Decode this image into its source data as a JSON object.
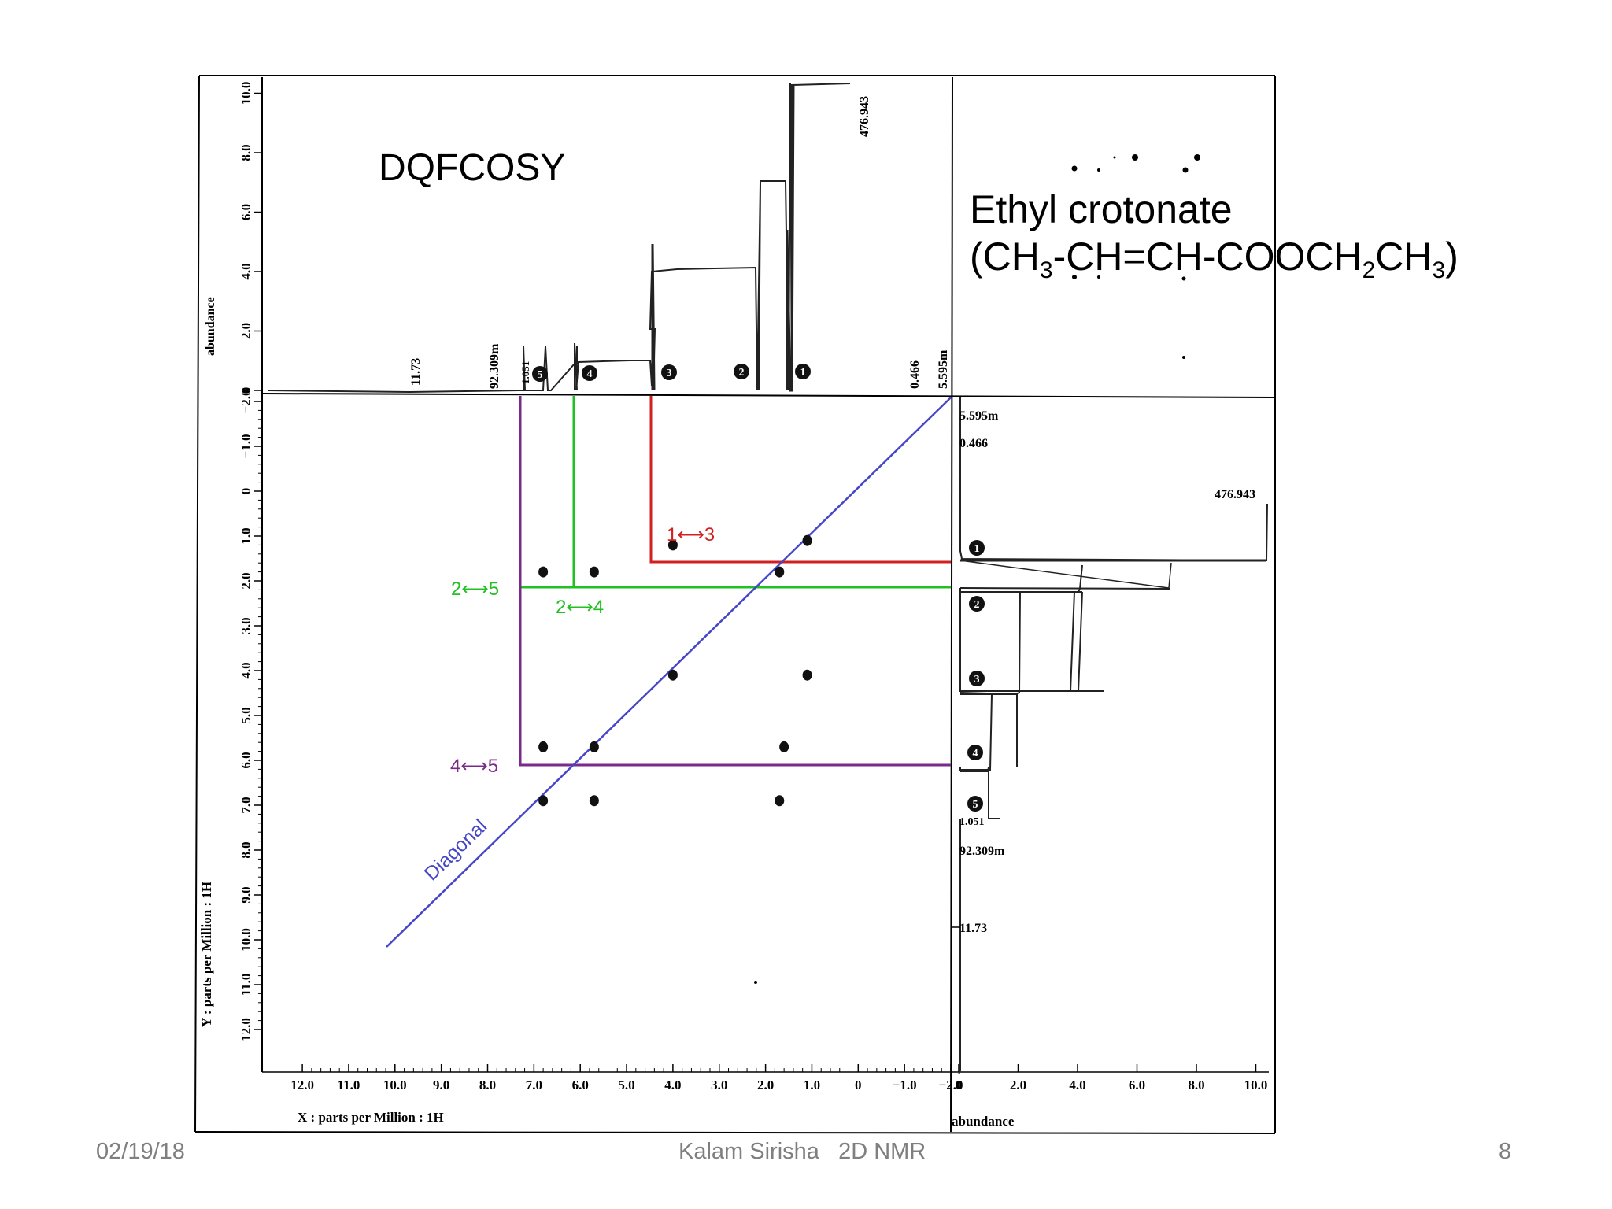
{
  "slide": {
    "title": "DQFCOSY",
    "compound_name": "Ethyl crotonate",
    "formula_parts": [
      "(CH",
      "3",
      "-CH=CH-COOCH",
      "2",
      "CH",
      "3",
      ")"
    ],
    "footer_date": "02/19/18",
    "footer_center": "Kalam Sirisha   2D NMR",
    "page_number": "8"
  },
  "chart_data": {
    "type": "scatter",
    "title": "DQFCOSY",
    "xlabel": "X : parts per Million : 1H",
    "ylabel": "Y : parts per Million : 1H",
    "xlim": [
      12.5,
      -2.5
    ],
    "ylim": [
      -2.5,
      12.5
    ],
    "x_ticks": [
      "12.0",
      "11.0",
      "10.0",
      "9.0",
      "8.0",
      "7.0",
      "6.0",
      "5.0",
      "4.0",
      "3.0",
      "2.0",
      "1.0",
      "0",
      "−1.0",
      "−2.0"
    ],
    "y_ticks": [
      "−2.0",
      "−1.0",
      "0",
      "1.0",
      "2.0",
      "3.0",
      "4.0",
      "5.0",
      "6.0",
      "7.0",
      "8.0",
      "9.0",
      "10.0",
      "11.0",
      "12.0"
    ],
    "top_projection": {
      "ylabel": "abundance",
      "y_ticks": [
        "0",
        "2.0",
        "4.0",
        "6.0",
        "8.0",
        "10.0"
      ],
      "integral_labels": [
        "11.73",
        "92.309m",
        "1.051",
        "0.466",
        "5.595m",
        "476.943"
      ],
      "peak_numbers": [
        "1",
        "2",
        "3",
        "4",
        "5"
      ]
    },
    "right_projection": {
      "xlabel": "abundance",
      "x_ticks": [
        "0",
        "2.0",
        "4.0",
        "6.0",
        "8.0",
        "10.0"
      ],
      "integral_labels": [
        "5.595m",
        "0.466",
        "476.943",
        "1.051",
        "92.309m",
        "11.73"
      ],
      "peak_numbers": [
        "1",
        "2",
        "3",
        "4",
        "5"
      ]
    },
    "peaks": [
      {
        "x": 1.1,
        "y": 1.1
      },
      {
        "x": 1.7,
        "y": 1.8
      },
      {
        "x": 4.0,
        "y": 4.1
      },
      {
        "x": 5.7,
        "y": 5.7
      },
      {
        "x": 6.8,
        "y": 6.9
      },
      {
        "x": 4.0,
        "y": 1.2
      },
      {
        "x": 6.8,
        "y": 1.8
      },
      {
        "x": 5.7,
        "y": 1.8
      },
      {
        "x": 6.8,
        "y": 5.7
      },
      {
        "x": 1.6,
        "y": 5.7
      },
      {
        "x": 1.1,
        "y": 4.1
      },
      {
        "x": 5.7,
        "y": 6.9
      },
      {
        "x": 1.7,
        "y": 6.9
      }
    ],
    "correlations": [
      {
        "label": "1⟷3",
        "color": "#d22020"
      },
      {
        "label": "2⟷5",
        "color": "#22c022"
      },
      {
        "label": "2⟷4",
        "color": "#22c022"
      },
      {
        "label": "4⟷5",
        "color": "#7a2a8a"
      }
    ],
    "diagonal_label": "Diagonal",
    "diagonal_color": "#4646c8"
  }
}
